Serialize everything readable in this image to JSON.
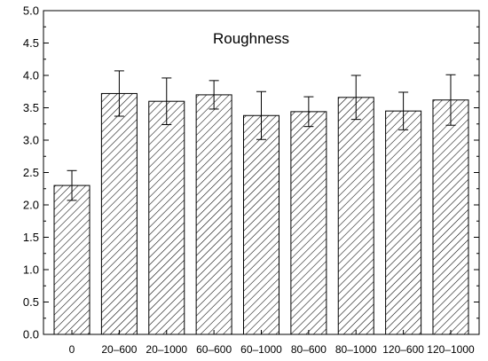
{
  "chart_data": {
    "type": "bar",
    "title": "Roughness",
    "xlabel": "",
    "ylabel": "",
    "ylim": [
      0,
      5
    ],
    "y_ticks": [
      "0.0",
      "0.5",
      "1.0",
      "1.5",
      "2.0",
      "2.5",
      "3.0",
      "3.5",
      "4.0",
      "4.5",
      "5.0"
    ],
    "categories": [
      "0",
      "20–600",
      "20–1000",
      "60–600",
      "60–1000",
      "80–600",
      "80–1000",
      "120–600",
      "120–1000"
    ],
    "values": [
      2.3,
      3.72,
      3.6,
      3.7,
      3.38,
      3.44,
      3.66,
      3.45,
      3.62
    ],
    "errors": [
      0.23,
      0.35,
      0.36,
      0.22,
      0.37,
      0.23,
      0.34,
      0.29,
      0.39
    ],
    "grid": false,
    "legend": "none",
    "bar_fill": "diagonal-hatch",
    "colors": {
      "bar_stroke": "#000000",
      "hatch": "#000000",
      "background": "#ffffff"
    }
  }
}
